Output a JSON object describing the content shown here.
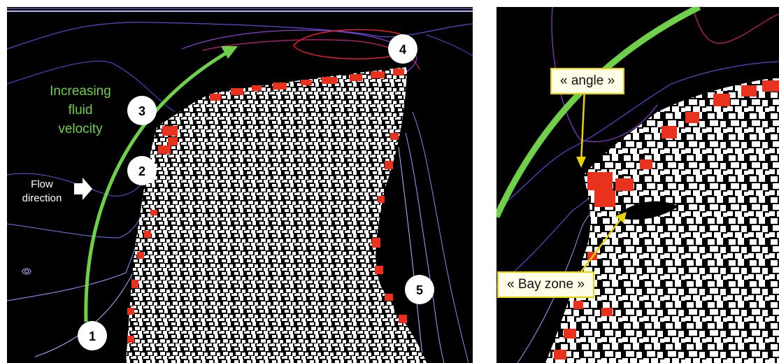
{
  "left_panel": {
    "velocity_label": [
      "Increasing",
      "fluid",
      "velocity"
    ],
    "flow_label": [
      "Flow",
      "direction"
    ],
    "markers": [
      "1",
      "2",
      "3",
      "4",
      "5"
    ]
  },
  "right_panel": {
    "angle_label": "« angle »",
    "bay_label": "« Bay zone »"
  },
  "colors": {
    "velocity_arrow": "#6fd04a",
    "deposit": "#e8321e",
    "callout_border": "#e8d200",
    "contours": [
      "#5a4bd0",
      "#8a3fd0",
      "#c8207a",
      "#e0202a",
      "#b8b8ff"
    ]
  }
}
